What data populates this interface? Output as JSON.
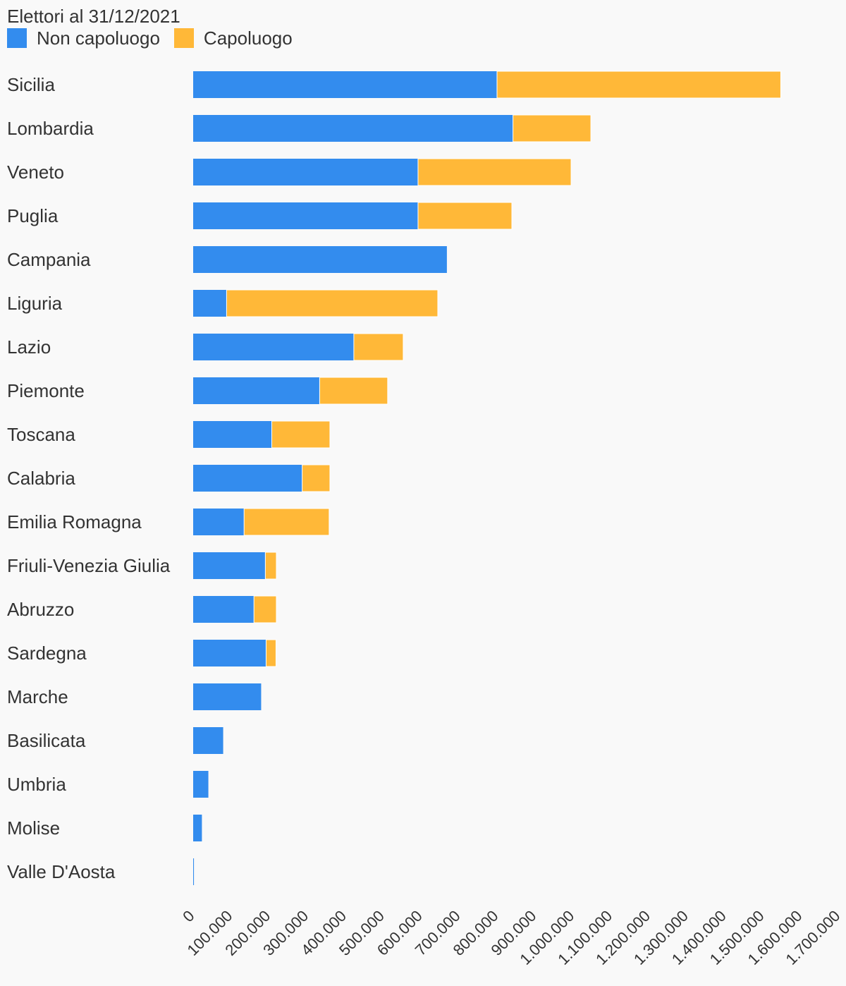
{
  "chart_data": {
    "type": "bar",
    "orientation": "horizontal",
    "stacked": true,
    "title": "Elettori al 31/12/2021",
    "xlabel": "",
    "ylabel": "",
    "xlim": [
      0,
      1700000
    ],
    "ticks": [
      "0",
      "100.000",
      "200.000",
      "300.000",
      "400.000",
      "500.000",
      "600.000",
      "700.000",
      "800.000",
      "900.000",
      "1.000.000",
      "1.100.000",
      "1.200.000",
      "1.300.000",
      "1.400.000",
      "1.500.000",
      "1.600.000",
      "1.700.000"
    ],
    "tick_values": [
      0,
      100000,
      200000,
      300000,
      400000,
      500000,
      600000,
      700000,
      800000,
      900000,
      1000000,
      1100000,
      1200000,
      1300000,
      1400000,
      1500000,
      1600000,
      1700000
    ],
    "grid": false,
    "legend_position": "top-left",
    "categories": [
      "Sicilia",
      "Lombardia",
      "Veneto",
      "Puglia",
      "Campania",
      "Liguria",
      "Lazio",
      "Piemonte",
      "Toscana",
      "Calabria",
      "Emilia Romagna",
      "Friuli-Venezia Giulia",
      "Abruzzo",
      "Sardegna",
      "Marche",
      "Basilicata",
      "Umbria",
      "Molise",
      "Valle D'Aosta"
    ],
    "series": [
      {
        "name": "Non capoluogo",
        "color": "#338cee",
        "values": [
          800000,
          842000,
          592000,
          592000,
          668000,
          88000,
          423000,
          333000,
          207000,
          287000,
          134000,
          190000,
          160000,
          192000,
          179000,
          79000,
          40000,
          23000,
          2000
        ]
      },
      {
        "name": "Capoluogo",
        "color": "#ffb838",
        "values": [
          747000,
          205000,
          403000,
          247000,
          0,
          556000,
          130000,
          179000,
          153000,
          73000,
          224000,
          29000,
          59000,
          26000,
          0,
          0,
          0,
          0,
          0
        ]
      }
    ]
  }
}
